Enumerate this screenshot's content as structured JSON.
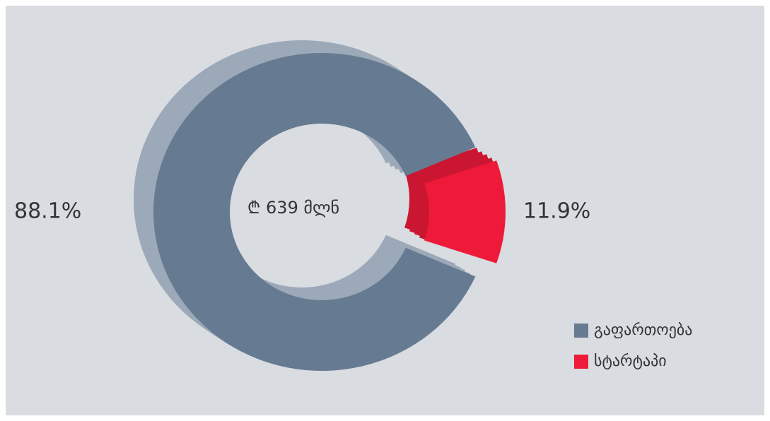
{
  "chart_data": {
    "type": "donut",
    "center_label": "₾ 639 მლნ",
    "categories": [
      "გაფართოება",
      "სტარტაპი"
    ],
    "values": [
      88.1,
      11.9
    ],
    "value_labels": [
      "88.1%",
      "11.9%"
    ],
    "colors": [
      "#667b91",
      "#ee1a3a"
    ],
    "explode": [
      false,
      true
    ],
    "legend": "bottom-right"
  }
}
